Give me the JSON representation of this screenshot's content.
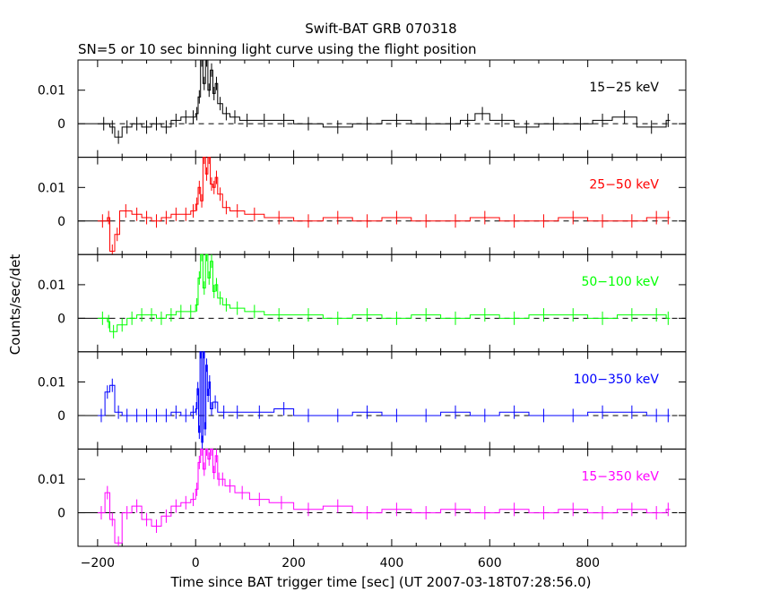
{
  "chart_data": {
    "type": "line",
    "title": "Swift-BAT GRB 070318",
    "subtitle": "SN=5 or 10 sec binning light curve using the flight position",
    "xlabel": "Time since BAT trigger time [sec] (UT 2007-03-18T07:28:56.0)",
    "ylabel": "Counts/sec/det",
    "xlim": [
      -240,
      1000
    ],
    "ylim": [
      -0.01,
      0.019
    ],
    "x_ticks": [
      "−200",
      "0",
      "200",
      "400",
      "600",
      "800"
    ],
    "y_ticks": [
      "0.01",
      "0"
    ],
    "grid": false,
    "style": "step histogram with error bars, dashed zero line",
    "panels": [
      {
        "band": "15−25 keV",
        "color": "#000000",
        "points": [
          [
            -200,
            0
          ],
          [
            -175,
            -0.001
          ],
          [
            -165,
            -0.004
          ],
          [
            -150,
            -0.001
          ],
          [
            -130,
            0
          ],
          [
            -110,
            -0.001
          ],
          [
            -90,
            0
          ],
          [
            -70,
            -0.001
          ],
          [
            -50,
            0.001
          ],
          [
            -30,
            0.002
          ],
          [
            -10,
            0.002
          ],
          [
            0,
            0.003
          ],
          [
            5,
            0.008
          ],
          [
            10,
            0.019
          ],
          [
            15,
            0.012
          ],
          [
            20,
            0.019
          ],
          [
            25,
            0.01
          ],
          [
            30,
            0.016
          ],
          [
            35,
            0.009
          ],
          [
            40,
            0.012
          ],
          [
            45,
            0.006
          ],
          [
            55,
            0.003
          ],
          [
            70,
            0.002
          ],
          [
            90,
            0.001
          ],
          [
            120,
            0.001
          ],
          [
            160,
            0.001
          ],
          [
            200,
            0
          ],
          [
            260,
            -0.001
          ],
          [
            320,
            0
          ],
          [
            380,
            0.001
          ],
          [
            440,
            0
          ],
          [
            500,
            0
          ],
          [
            540,
            0.001
          ],
          [
            570,
            0.003
          ],
          [
            600,
            0.001
          ],
          [
            650,
            -0.001
          ],
          [
            700,
            0
          ],
          [
            760,
            0
          ],
          [
            810,
            0.001
          ],
          [
            850,
            0.002
          ],
          [
            900,
            -0.001
          ],
          [
            960,
            0.001
          ]
        ]
      },
      {
        "band": "25−50 keV",
        "color": "#ff0000",
        "points": [
          [
            -200,
            0
          ],
          [
            -180,
            0.001
          ],
          [
            -175,
            -0.009
          ],
          [
            -165,
            -0.004
          ],
          [
            -155,
            0.003
          ],
          [
            -130,
            0.002
          ],
          [
            -110,
            0.001
          ],
          [
            -90,
            0
          ],
          [
            -70,
            0.001
          ],
          [
            -50,
            0.002
          ],
          [
            -30,
            0.002
          ],
          [
            -10,
            0.003
          ],
          [
            0,
            0.005
          ],
          [
            5,
            0.01
          ],
          [
            10,
            0.006
          ],
          [
            15,
            0.019
          ],
          [
            20,
            0.014
          ],
          [
            25,
            0.019
          ],
          [
            30,
            0.011
          ],
          [
            35,
            0.01
          ],
          [
            40,
            0.013
          ],
          [
            45,
            0.008
          ],
          [
            55,
            0.004
          ],
          [
            70,
            0.003
          ],
          [
            100,
            0.002
          ],
          [
            140,
            0.001
          ],
          [
            200,
            0
          ],
          [
            260,
            0.001
          ],
          [
            320,
            0
          ],
          [
            380,
            0.001
          ],
          [
            440,
            0
          ],
          [
            500,
            0
          ],
          [
            560,
            0.001
          ],
          [
            620,
            0
          ],
          [
            680,
            0
          ],
          [
            740,
            0.001
          ],
          [
            800,
            0
          ],
          [
            860,
            0
          ],
          [
            920,
            0.001
          ],
          [
            960,
            0.001
          ]
        ]
      },
      {
        "band": "50−100 keV",
        "color": "#00ff00",
        "points": [
          [
            -200,
            0
          ],
          [
            -180,
            -0.001
          ],
          [
            -175,
            -0.004
          ],
          [
            -160,
            -0.002
          ],
          [
            -140,
            0
          ],
          [
            -120,
            0.001
          ],
          [
            -100,
            0.001
          ],
          [
            -80,
            0
          ],
          [
            -60,
            0.001
          ],
          [
            -40,
            0.002
          ],
          [
            -20,
            0.002
          ],
          [
            0,
            0.004
          ],
          [
            5,
            0.012
          ],
          [
            10,
            0.019
          ],
          [
            15,
            0.009
          ],
          [
            20,
            0.019
          ],
          [
            25,
            0.012
          ],
          [
            30,
            0.017
          ],
          [
            35,
            0.008
          ],
          [
            40,
            0.01
          ],
          [
            45,
            0.006
          ],
          [
            55,
            0.004
          ],
          [
            70,
            0.003
          ],
          [
            100,
            0.002
          ],
          [
            140,
            0.001
          ],
          [
            200,
            0.001
          ],
          [
            260,
            0
          ],
          [
            320,
            0.001
          ],
          [
            380,
            0
          ],
          [
            440,
            0.001
          ],
          [
            500,
            0
          ],
          [
            560,
            0.001
          ],
          [
            620,
            0
          ],
          [
            680,
            0.001
          ],
          [
            740,
            0.001
          ],
          [
            800,
            0
          ],
          [
            860,
            0.001
          ],
          [
            920,
            0.001
          ],
          [
            960,
            0
          ]
        ]
      },
      {
        "band": "100−350 keV",
        "color": "#0000ff",
        "points": [
          [
            -200,
            0
          ],
          [
            -185,
            0.007
          ],
          [
            -175,
            0.009
          ],
          [
            -165,
            0.001
          ],
          [
            -150,
            0
          ],
          [
            -130,
            0
          ],
          [
            -110,
            0
          ],
          [
            -90,
            0
          ],
          [
            -70,
            0
          ],
          [
            -50,
            0.001
          ],
          [
            -30,
            0
          ],
          [
            -10,
            0.001
          ],
          [
            0,
            0.002
          ],
          [
            3,
            0.008
          ],
          [
            6,
            -0.005
          ],
          [
            9,
            0.019
          ],
          [
            12,
            -0.008
          ],
          [
            15,
            0.019
          ],
          [
            18,
            -0.004
          ],
          [
            21,
            0.015
          ],
          [
            24,
            0.006
          ],
          [
            27,
            0.01
          ],
          [
            30,
            0.002
          ],
          [
            35,
            0.004
          ],
          [
            45,
            0.001
          ],
          [
            70,
            0.001
          ],
          [
            100,
            0.001
          ],
          [
            160,
            0.002
          ],
          [
            200,
            0
          ],
          [
            260,
            0
          ],
          [
            320,
            0.001
          ],
          [
            380,
            0
          ],
          [
            440,
            0
          ],
          [
            500,
            0.001
          ],
          [
            560,
            0
          ],
          [
            620,
            0.001
          ],
          [
            680,
            0
          ],
          [
            740,
            0
          ],
          [
            800,
            0.001
          ],
          [
            860,
            0.001
          ],
          [
            920,
            0
          ],
          [
            960,
            0
          ]
        ]
      },
      {
        "band": "15−350 keV",
        "color": "#ff00ff",
        "points": [
          [
            -200,
            0
          ],
          [
            -185,
            0.006
          ],
          [
            -175,
            -0.002
          ],
          [
            -165,
            -0.009
          ],
          [
            -150,
            0
          ],
          [
            -130,
            0.002
          ],
          [
            -110,
            -0.002
          ],
          [
            -90,
            -0.004
          ],
          [
            -70,
            -0.001
          ],
          [
            -50,
            0.002
          ],
          [
            -30,
            0.003
          ],
          [
            -10,
            0.004
          ],
          [
            0,
            0.007
          ],
          [
            5,
            0.015
          ],
          [
            10,
            0.019
          ],
          [
            15,
            0.013
          ],
          [
            20,
            0.019
          ],
          [
            25,
            0.016
          ],
          [
            30,
            0.019
          ],
          [
            35,
            0.012
          ],
          [
            40,
            0.017
          ],
          [
            45,
            0.01
          ],
          [
            50,
            0.01
          ],
          [
            60,
            0.008
          ],
          [
            80,
            0.006
          ],
          [
            110,
            0.004
          ],
          [
            150,
            0.003
          ],
          [
            200,
            0.001
          ],
          [
            260,
            0.002
          ],
          [
            320,
            0
          ],
          [
            380,
            0.001
          ],
          [
            440,
            0
          ],
          [
            500,
            0.001
          ],
          [
            560,
            0
          ],
          [
            620,
            0.001
          ],
          [
            680,
            0
          ],
          [
            740,
            0.001
          ],
          [
            800,
            0
          ],
          [
            860,
            0.001
          ],
          [
            920,
            0
          ],
          [
            960,
            0.001
          ]
        ]
      }
    ]
  }
}
